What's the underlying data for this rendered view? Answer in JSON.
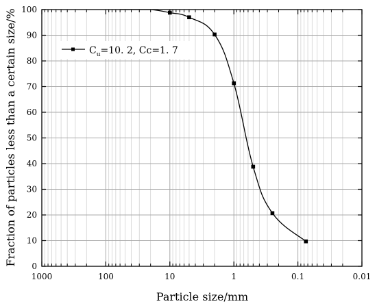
{
  "chart_data": {
    "type": "line",
    "title": "",
    "xlabel": "Particle size/mm",
    "ylabel": "Fraction of particles less than a certain size/%",
    "x_scale": "log",
    "x_reversed": true,
    "xlim": [
      1000,
      0.01
    ],
    "ylim": [
      0,
      100
    ],
    "x_ticks": [
      {
        "value": 1000,
        "label": "1000"
      },
      {
        "value": 100,
        "label": "100"
      },
      {
        "value": 10,
        "label": "10"
      },
      {
        "value": 1,
        "label": "1"
      },
      {
        "value": 0.1,
        "label": "0.1"
      },
      {
        "value": 0.01,
        "label": "0.01"
      }
    ],
    "y_ticks": [
      {
        "value": 0,
        "label": "0"
      },
      {
        "value": 10,
        "label": "10"
      },
      {
        "value": 20,
        "label": "20"
      },
      {
        "value": 30,
        "label": "30"
      },
      {
        "value": 40,
        "label": "40"
      },
      {
        "value": 50,
        "label": "50"
      },
      {
        "value": 60,
        "label": "60"
      },
      {
        "value": 70,
        "label": "70"
      },
      {
        "value": 80,
        "label": "80"
      },
      {
        "value": 90,
        "label": "90"
      },
      {
        "value": 100,
        "label": "100"
      }
    ],
    "grid": true,
    "legend": {
      "placement": "top-left",
      "entry": {
        "c_main": "C",
        "c_sub": "u",
        "text_rest": "=10. 2, Cc=1. 7"
      }
    },
    "series": [
      {
        "marker": "square",
        "color": "#000000",
        "x": [
          60,
          40,
          20,
          10,
          5,
          2,
          1,
          0.5,
          0.25,
          0.075
        ],
        "y": [
          100,
          100,
          100,
          98.8,
          97,
          90.3,
          71.3,
          38.8,
          20.7,
          9.7
        ],
        "marker_shown": [
          false,
          false,
          false,
          true,
          true,
          true,
          true,
          true,
          true,
          true
        ]
      }
    ]
  }
}
